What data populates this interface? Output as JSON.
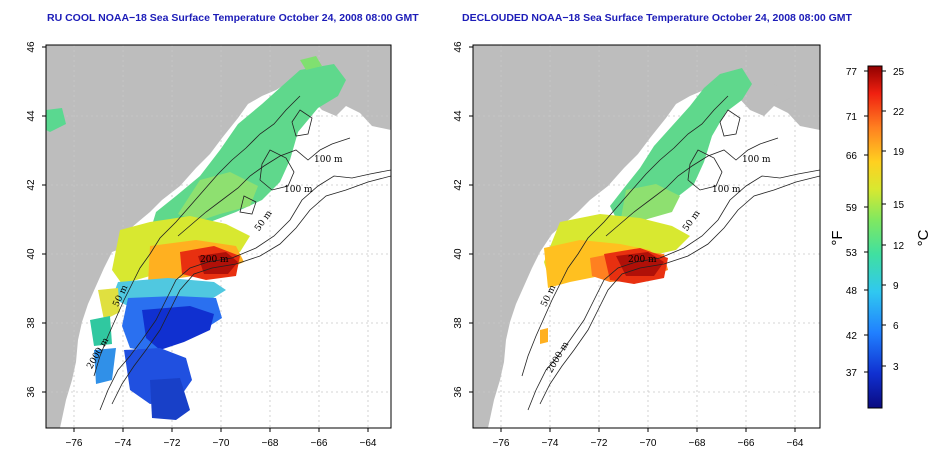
{
  "left_panel": {
    "title": "RU COOL NOAA−18 Sea Surface Temperature October 24, 2008 08:00 GMT"
  },
  "right_panel": {
    "title": "DECLOUDED NOAA−18 Sea Surface Temperature October 24, 2008 08:00 GMT"
  },
  "axes": {
    "lon_ticks": [
      "−76",
      "−74",
      "−72",
      "−70",
      "−68",
      "−66",
      "−64"
    ],
    "lat_ticks": [
      "36",
      "38",
      "40",
      "42",
      "44",
      "46"
    ],
    "lon_range": [
      -77.2,
      -63.0
    ],
    "lat_range": [
      35.0,
      46.0
    ]
  },
  "contour_labels": {
    "left": [
      "100 m",
      "100 m",
      "50 m",
      "200 m",
      "50 m",
      "2000 m"
    ],
    "right": [
      "100 m",
      "100 m",
      "50 m",
      "200 m",
      "50 m",
      "2000 m"
    ]
  },
  "colorbar": {
    "fahrenheit_ticks": [
      "77",
      "71",
      "66",
      "59",
      "53",
      "48",
      "42",
      "37"
    ],
    "celsius_ticks": [
      "25",
      "22",
      "19",
      "15",
      "12",
      "9",
      "6",
      "3"
    ],
    "fahrenheit_unit": "°F",
    "celsius_unit": "°C",
    "range_celsius": [
      0,
      25.5
    ],
    "colors": [
      "#0a0a80",
      "#1030d0",
      "#2080ff",
      "#30c8f0",
      "#40e0a0",
      "#80e860",
      "#d8e830",
      "#ffd020",
      "#ff8020",
      "#f02010",
      "#900000"
    ]
  },
  "colors": {
    "land": "#bdbdbd",
    "ocean": "#ffffff",
    "title": "#1c1cb8",
    "grid": "#c8c8c8",
    "contour": "#222222"
  }
}
